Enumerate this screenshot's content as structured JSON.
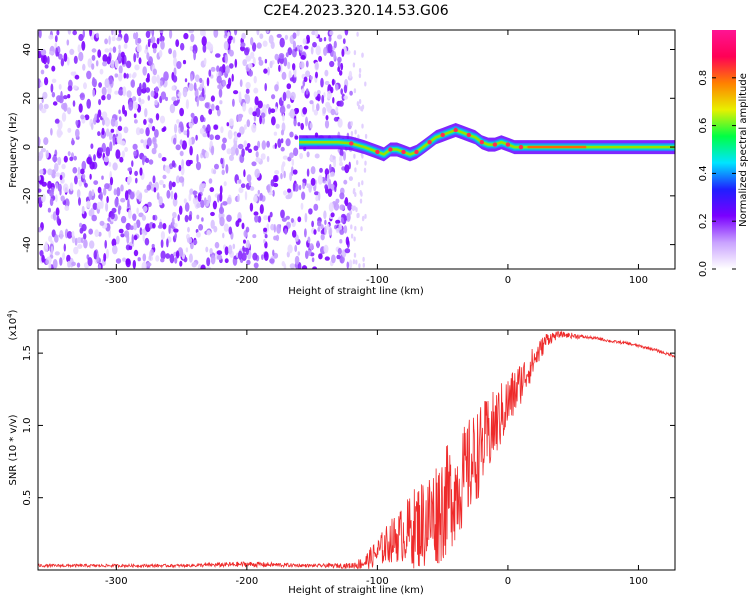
{
  "title": "C2E4.2023.320.14.53.G06",
  "colors": {
    "snr_line": "#ee2a2a",
    "spectro_noise": "#7a00ff",
    "background": "#ffffff"
  },
  "chart_data": [
    {
      "type": "heatmap",
      "name": "spectrogram",
      "xlabel": "Height of straight line (km)",
      "ylabel": "Frequency (Hz)",
      "xlim": [
        -360,
        128
      ],
      "ylim": [
        -50,
        48
      ],
      "x_ticks": [
        -300,
        -200,
        -100,
        0,
        100
      ],
      "y_ticks": [
        -40,
        -20,
        0,
        20,
        40
      ],
      "noise_region_x": [
        -360,
        -120
      ],
      "signal_track": {
        "x": [
          -160,
          -150,
          -140,
          -130,
          -120,
          -110,
          -100,
          -95,
          -90,
          -85,
          -80,
          -75,
          -70,
          -65,
          -60,
          -55,
          -50,
          -45,
          -40,
          -35,
          -30,
          -25,
          -20,
          -15,
          -10,
          -5,
          0,
          5,
          10,
          15,
          20,
          40,
          60,
          80,
          100,
          128
        ],
        "y": [
          2,
          2,
          2,
          2,
          1.5,
          0,
          -2,
          -3,
          -1,
          -1,
          -2,
          -3,
          -2,
          0,
          2,
          4,
          5,
          6,
          7,
          6,
          5,
          4,
          2,
          1,
          1,
          2,
          1,
          0,
          0,
          0,
          0,
          0,
          0,
          0,
          0,
          0
        ]
      },
      "colorbar": {
        "label": "Normalized spectral amplitude",
        "range": [
          0,
          1
        ],
        "ticks": [
          0.0,
          0.2,
          0.4,
          0.6,
          0.8
        ],
        "tick_labels": [
          "0.0",
          "0.2",
          "0.4",
          "0.6",
          "0.8"
        ],
        "stops": [
          "#ffffff",
          "#c9a2ff",
          "#7a00ff",
          "#1f1fff",
          "#00e5ff",
          "#00ff44",
          "#e8f000",
          "#ff8000",
          "#ff0055",
          "#ff1493"
        ]
      }
    },
    {
      "type": "line",
      "name": "snr",
      "xlabel": "Height of straight line (km)",
      "ylabel": "SNR (10 * v/v)",
      "y_multiplier": "(x10",
      "y_multiplier_exp": "4",
      "y_multiplier_close": ")",
      "xlim": [
        -360,
        128
      ],
      "ylim": [
        0,
        1.66
      ],
      "x_ticks": [
        -300,
        -200,
        -100,
        0,
        100
      ],
      "y_ticks": [
        0.5,
        1.0,
        1.5
      ],
      "y_tick_labels": [
        "0.5",
        "1.0",
        "1.5"
      ],
      "series": [
        {
          "x": [
            -360,
            -300,
            -250,
            -200,
            -150,
            -120,
            -110,
            -100,
            -90,
            -80,
            -70,
            -60,
            -50,
            -40,
            -30,
            -20,
            -10,
            0,
            10,
            20,
            30,
            40,
            50,
            60,
            70,
            80,
            90,
            100,
            110,
            120,
            128
          ],
          "y": [
            0.03,
            0.03,
            0.03,
            0.04,
            0.03,
            0.03,
            0.05,
            0.12,
            0.2,
            0.25,
            0.3,
            0.35,
            0.45,
            0.55,
            0.7,
            0.85,
            1.0,
            1.15,
            1.3,
            1.45,
            1.6,
            1.63,
            1.62,
            1.61,
            1.6,
            1.58,
            1.57,
            1.55,
            1.53,
            1.5,
            1.48
          ],
          "spread": [
            0.01,
            0.01,
            0.01,
            0.02,
            0.01,
            0.02,
            0.05,
            0.1,
            0.15,
            0.2,
            0.3,
            0.35,
            0.4,
            0.35,
            0.35,
            0.3,
            0.25,
            0.2,
            0.15,
            0.1,
            0.05,
            0.02,
            0.02,
            0.01,
            0.01,
            0.01,
            0.01,
            0.01,
            0.01,
            0.01,
            0.01
          ]
        }
      ]
    }
  ]
}
